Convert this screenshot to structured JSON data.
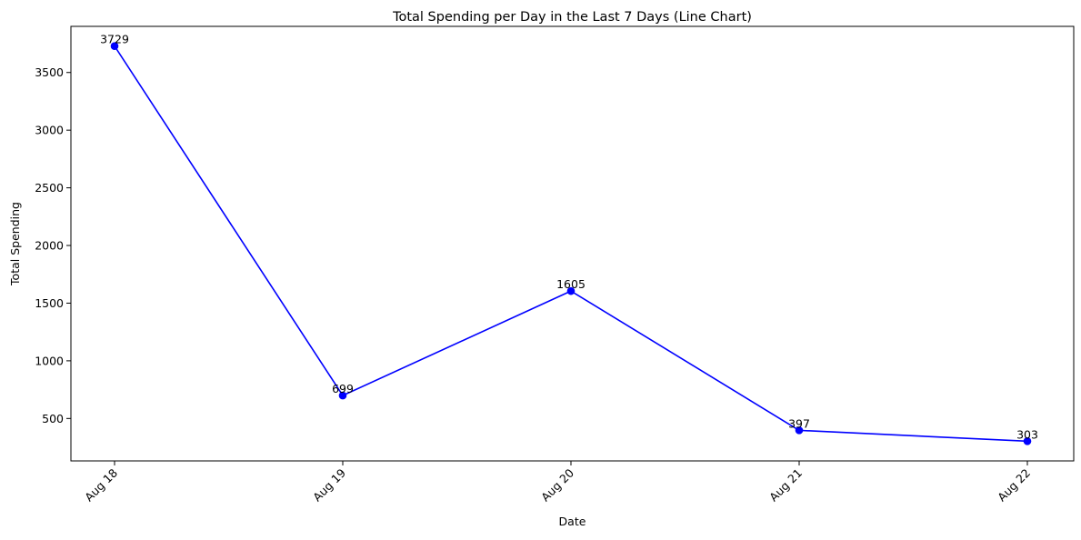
{
  "chart_data": {
    "type": "line",
    "title": "Total Spending per Day in the Last 7 Days (Line Chart)",
    "xlabel": "Date",
    "ylabel": "Total Spending",
    "categories": [
      "Aug 18",
      "Aug 19",
      "Aug 20",
      "Aug 21",
      "Aug 22"
    ],
    "series": [
      {
        "values": [
          3729,
          699,
          1605,
          397,
          303
        ],
        "color": "#0000ff",
        "marker": "circle"
      }
    ],
    "data_labels": [
      "3729",
      "699",
      "1605",
      "397",
      "303"
    ],
    "yticks": [
      500,
      1000,
      1500,
      2000,
      2500,
      3000,
      3500
    ],
    "ytick_labels": [
      "500",
      "1000",
      "1500",
      "2000",
      "2500",
      "3000",
      "3500"
    ],
    "ylim": [
      132,
      3900
    ],
    "grid": false,
    "legend": "none",
    "xtick_rotation": -45
  }
}
